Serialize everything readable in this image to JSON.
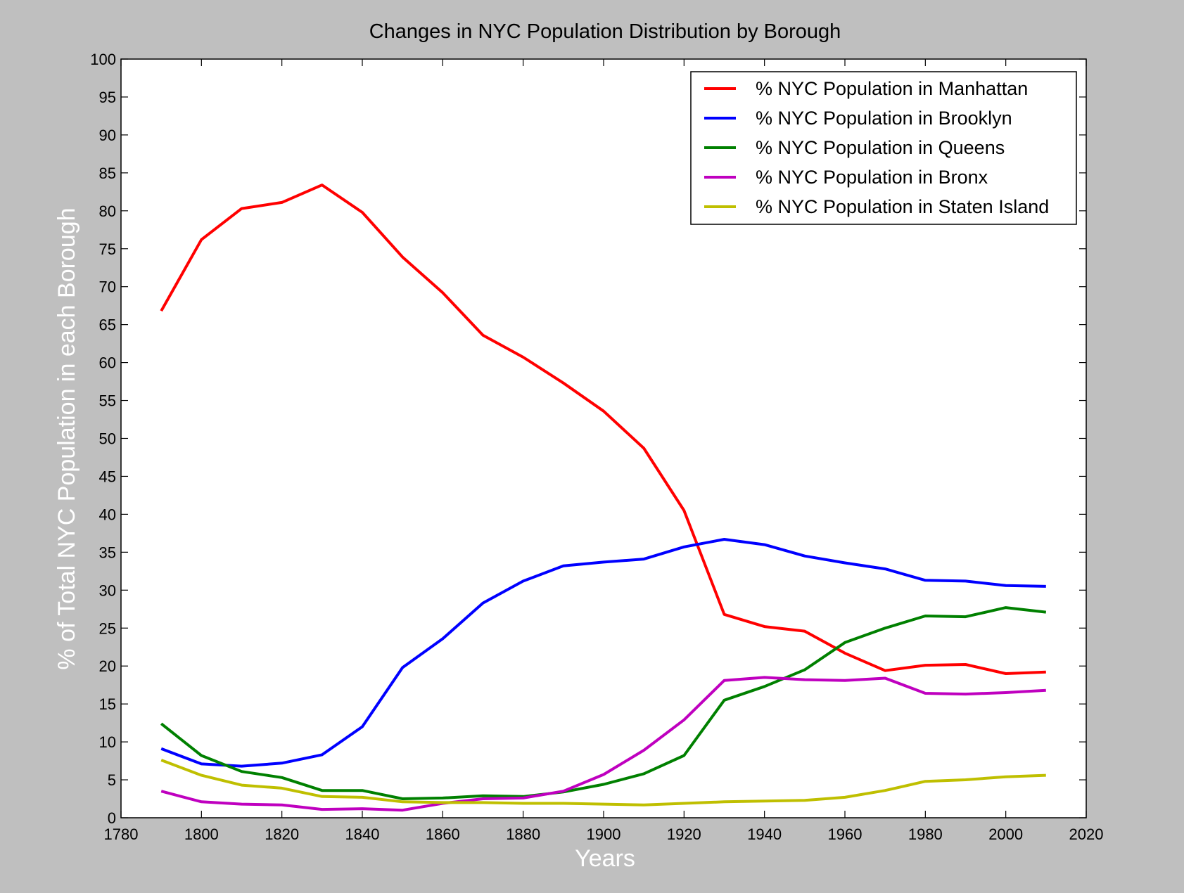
{
  "chart_data": {
    "type": "line",
    "title": "Changes in NYC Population Distribution by Borough",
    "xlabel": "Years",
    "ylabel": "% of Total NYC Population in each Borough",
    "xlim": [
      1780,
      2020
    ],
    "ylim": [
      0,
      100
    ],
    "x_ticks": [
      "1780",
      "1800",
      "1820",
      "1840",
      "1860",
      "1880",
      "1900",
      "1920",
      "1940",
      "1960",
      "1980",
      "2000",
      "2020"
    ],
    "y_ticks": [
      "0",
      "5",
      "10",
      "15",
      "20",
      "25",
      "30",
      "35",
      "40",
      "45",
      "50",
      "55",
      "60",
      "65",
      "70",
      "75",
      "80",
      "85",
      "90",
      "95",
      "100"
    ],
    "grid": false,
    "legend_position": "top-right",
    "x": [
      1790,
      1800,
      1810,
      1820,
      1830,
      1840,
      1850,
      1860,
      1870,
      1880,
      1890,
      1900,
      1910,
      1920,
      1930,
      1940,
      1950,
      1960,
      1970,
      1980,
      1990,
      2000,
      2010
    ],
    "series": [
      {
        "name": "% NYC Population in Manhattan",
        "color": "#ff0000",
        "values": [
          66.8,
          76.2,
          80.3,
          81.1,
          83.4,
          79.8,
          73.9,
          69.2,
          63.6,
          60.7,
          57.3,
          53.6,
          48.7,
          40.5,
          26.8,
          25.2,
          24.6,
          21.7,
          19.4,
          20.1,
          20.2,
          19.0,
          19.2
        ]
      },
      {
        "name": "% NYC Population in Brooklyn",
        "color": "#0000ff",
        "values": [
          9.1,
          7.1,
          6.8,
          7.2,
          8.3,
          12.0,
          19.8,
          23.6,
          28.3,
          31.2,
          33.2,
          33.7,
          34.1,
          35.7,
          36.7,
          36.0,
          34.5,
          33.6,
          32.8,
          31.3,
          31.2,
          30.6,
          30.5
        ]
      },
      {
        "name": "% NYC Population in Queens",
        "color": "#008000",
        "values": [
          12.4,
          8.2,
          6.1,
          5.3,
          3.6,
          3.6,
          2.5,
          2.6,
          2.9,
          2.8,
          3.4,
          4.4,
          5.8,
          8.2,
          15.5,
          17.3,
          19.5,
          23.1,
          25.0,
          26.6,
          26.5,
          27.7,
          27.1
        ]
      },
      {
        "name": "% NYC Population in Bronx",
        "color": "#bf00bf",
        "values": [
          3.5,
          2.1,
          1.8,
          1.7,
          1.1,
          1.2,
          1.0,
          1.9,
          2.5,
          2.6,
          3.5,
          5.7,
          8.9,
          12.9,
          18.1,
          18.5,
          18.2,
          18.1,
          18.4,
          16.4,
          16.3,
          16.5,
          16.8
        ]
      },
      {
        "name": "% NYC Population in Staten Island",
        "color": "#bfbf00",
        "values": [
          7.6,
          5.6,
          4.3,
          3.9,
          2.8,
          2.7,
          2.1,
          2.0,
          2.0,
          1.9,
          1.9,
          1.8,
          1.7,
          1.9,
          2.1,
          2.2,
          2.3,
          2.7,
          3.6,
          4.8,
          5.0,
          5.4,
          5.6
        ]
      }
    ]
  }
}
